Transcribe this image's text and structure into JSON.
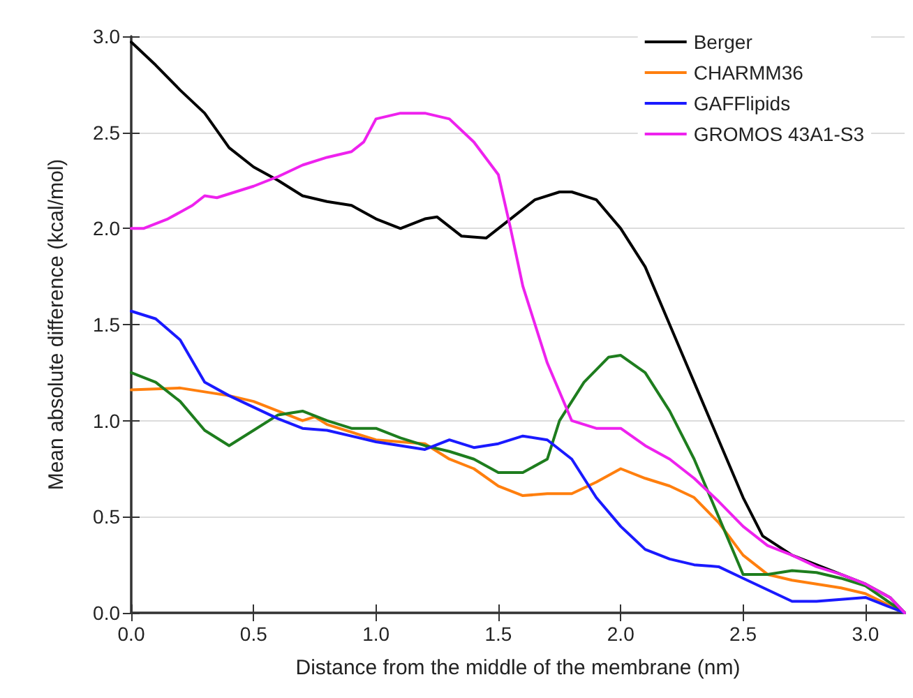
{
  "chart_data": {
    "type": "line",
    "xlabel": "Distance from the middle of the membrane (nm)",
    "ylabel": "Mean absolute difference (kcal/mol)",
    "xlim": [
      0,
      3.16
    ],
    "ylim": [
      0,
      3.0
    ],
    "xticks": [
      {
        "value": 0,
        "label": "0.0"
      },
      {
        "value": 0.5,
        "label": "0.5"
      },
      {
        "value": 1.0,
        "label": "1.0"
      },
      {
        "value": 1.5,
        "label": "1.5"
      },
      {
        "value": 2.0,
        "label": "2.0"
      },
      {
        "value": 2.5,
        "label": "2.5"
      },
      {
        "value": 3.0,
        "label": "3.0"
      }
    ],
    "yticks": [
      {
        "value": 0,
        "label": "0.0"
      },
      {
        "value": 0.5,
        "label": "0.5"
      },
      {
        "value": 1.0,
        "label": "1.0"
      },
      {
        "value": 1.5,
        "label": "1.5"
      },
      {
        "value": 2.0,
        "label": "2.0"
      },
      {
        "value": 2.5,
        "label": "2.5"
      },
      {
        "value": 3.0,
        "label": "3.0"
      }
    ],
    "grid": "y",
    "legend": "top right",
    "marker": "none",
    "line_style": "solid",
    "series": [
      {
        "name": "Berger",
        "color": "#000000",
        "x": [
          0,
          0.1,
          0.2,
          0.3,
          0.4,
          0.5,
          0.6,
          0.7,
          0.8,
          0.9,
          1.0,
          1.1,
          1.2,
          1.25,
          1.35,
          1.45,
          1.55,
          1.65,
          1.75,
          1.8,
          1.9,
          2.0,
          2.1,
          2.2,
          2.3,
          2.4,
          2.5,
          2.58,
          2.7,
          2.9,
          3.0,
          3.1,
          3.16
        ],
        "values": [
          2.97,
          2.85,
          2.72,
          2.6,
          2.42,
          2.32,
          2.25,
          2.17,
          2.14,
          2.12,
          2.05,
          2.0,
          2.05,
          2.06,
          1.96,
          1.95,
          2.05,
          2.15,
          2.19,
          2.19,
          2.15,
          2.0,
          1.8,
          1.5,
          1.2,
          0.9,
          0.6,
          0.4,
          0.3,
          0.2,
          0.15,
          0.08,
          0
        ]
      },
      {
        "name": "CHARMM36",
        "color": "#ff7f0e",
        "x": [
          0,
          0.2,
          0.4,
          0.5,
          0.6,
          0.7,
          0.75,
          0.8,
          1.0,
          1.2,
          1.3,
          1.4,
          1.5,
          1.6,
          1.7,
          1.8,
          1.9,
          2.0,
          2.1,
          2.2,
          2.3,
          2.4,
          2.5,
          2.6,
          2.7,
          2.8,
          2.9,
          3.0,
          3.16
        ],
        "values": [
          1.16,
          1.17,
          1.13,
          1.1,
          1.05,
          1.0,
          1.02,
          0.98,
          0.9,
          0.88,
          0.8,
          0.75,
          0.66,
          0.61,
          0.62,
          0.62,
          0.68,
          0.75,
          0.7,
          0.66,
          0.6,
          0.47,
          0.3,
          0.2,
          0.17,
          0.15,
          0.13,
          0.1,
          0
        ]
      },
      {
        "color": "#1e7d1e",
        "x": [
          0,
          0.1,
          0.2,
          0.3,
          0.4,
          0.5,
          0.6,
          0.7,
          0.8,
          0.9,
          1.0,
          1.1,
          1.2,
          1.3,
          1.4,
          1.5,
          1.6,
          1.7,
          1.75,
          1.85,
          1.95,
          2.0,
          2.1,
          2.2,
          2.3,
          2.4,
          2.5,
          2.6,
          2.7,
          2.8,
          2.9,
          3.0,
          3.16
        ],
        "values": [
          1.25,
          1.2,
          1.1,
          0.95,
          0.87,
          0.95,
          1.03,
          1.05,
          1.0,
          0.96,
          0.96,
          0.91,
          0.87,
          0.84,
          0.8,
          0.73,
          0.73,
          0.8,
          1.0,
          1.2,
          1.33,
          1.34,
          1.25,
          1.05,
          0.8,
          0.5,
          0.2,
          0.2,
          0.22,
          0.21,
          0.18,
          0.14,
          0
        ]
      },
      {
        "name": "GAFFlipids",
        "color": "#1a1aff",
        "x": [
          0,
          0.1,
          0.2,
          0.3,
          0.4,
          0.5,
          0.6,
          0.7,
          0.8,
          1.0,
          1.2,
          1.3,
          1.4,
          1.5,
          1.6,
          1.7,
          1.8,
          1.9,
          2.0,
          2.1,
          2.2,
          2.3,
          2.4,
          2.5,
          2.6,
          2.7,
          2.8,
          2.9,
          3.0,
          3.1,
          3.16
        ],
        "values": [
          1.57,
          1.53,
          1.42,
          1.2,
          1.13,
          1.07,
          1.01,
          0.96,
          0.95,
          0.89,
          0.85,
          0.9,
          0.86,
          0.88,
          0.92,
          0.9,
          0.8,
          0.6,
          0.45,
          0.33,
          0.28,
          0.25,
          0.24,
          0.18,
          0.12,
          0.06,
          0.06,
          0.07,
          0.08,
          0.03,
          0
        ]
      },
      {
        "name": "GROMOS 43A1-S3",
        "color": "#ee22ee",
        "x": [
          0,
          0.05,
          0.15,
          0.25,
          0.3,
          0.35,
          0.4,
          0.5,
          0.6,
          0.7,
          0.8,
          0.9,
          0.95,
          1.0,
          1.1,
          1.2,
          1.3,
          1.4,
          1.5,
          1.55,
          1.6,
          1.7,
          1.8,
          1.9,
          2.0,
          2.1,
          2.2,
          2.3,
          2.4,
          2.5,
          2.6,
          2.7,
          2.8,
          2.9,
          3.0,
          3.1,
          3.16
        ],
        "values": [
          2.0,
          2.0,
          2.05,
          2.12,
          2.17,
          2.16,
          2.18,
          2.22,
          2.27,
          2.33,
          2.37,
          2.4,
          2.45,
          2.57,
          2.6,
          2.6,
          2.57,
          2.45,
          2.28,
          2.0,
          1.7,
          1.3,
          1.0,
          0.96,
          0.96,
          0.87,
          0.8,
          0.7,
          0.58,
          0.45,
          0.35,
          0.3,
          0.24,
          0.2,
          0.15,
          0.08,
          0
        ]
      }
    ]
  }
}
